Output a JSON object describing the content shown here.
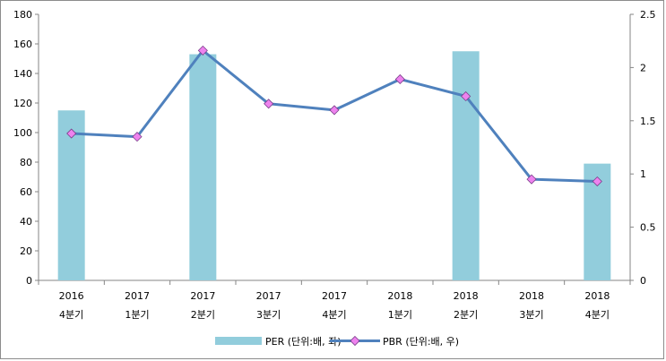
{
  "chart_data": {
    "type": "bar",
    "categories": [
      [
        "2016",
        "4분기"
      ],
      [
        "2017",
        "1분기"
      ],
      [
        "2017",
        "2분기"
      ],
      [
        "2017",
        "3분기"
      ],
      [
        "2017",
        "4분기"
      ],
      [
        "2018",
        "1분기"
      ],
      [
        "2018",
        "2분기"
      ],
      [
        "2018",
        "3분기"
      ],
      [
        "2018",
        "4분기"
      ]
    ],
    "series": [
      {
        "name": "PER (단위:배, 좌)",
        "type": "bar",
        "axis": "left",
        "color": "#92cddc",
        "values": [
          115,
          null,
          153,
          null,
          null,
          null,
          155,
          null,
          79
        ]
      },
      {
        "name": "PBR (단위:배, 우)",
        "type": "line",
        "axis": "right",
        "color": "#4f81bd",
        "marker_color": "#ee82ee",
        "values": [
          1.38,
          1.35,
          2.16,
          1.66,
          1.6,
          1.89,
          1.73,
          0.95,
          0.93
        ]
      }
    ],
    "y_left": {
      "ylim": [
        0,
        180
      ],
      "ticks": [
        "0",
        "20",
        "40",
        "60",
        "80",
        "100",
        "120",
        "140",
        "160",
        "180"
      ]
    },
    "y_right": {
      "ylim": [
        0,
        2.5
      ],
      "ticks": [
        "0",
        "0.5",
        "1",
        "1.5",
        "2",
        "2.5"
      ]
    },
    "grid": false,
    "legend_position": "bottom"
  }
}
